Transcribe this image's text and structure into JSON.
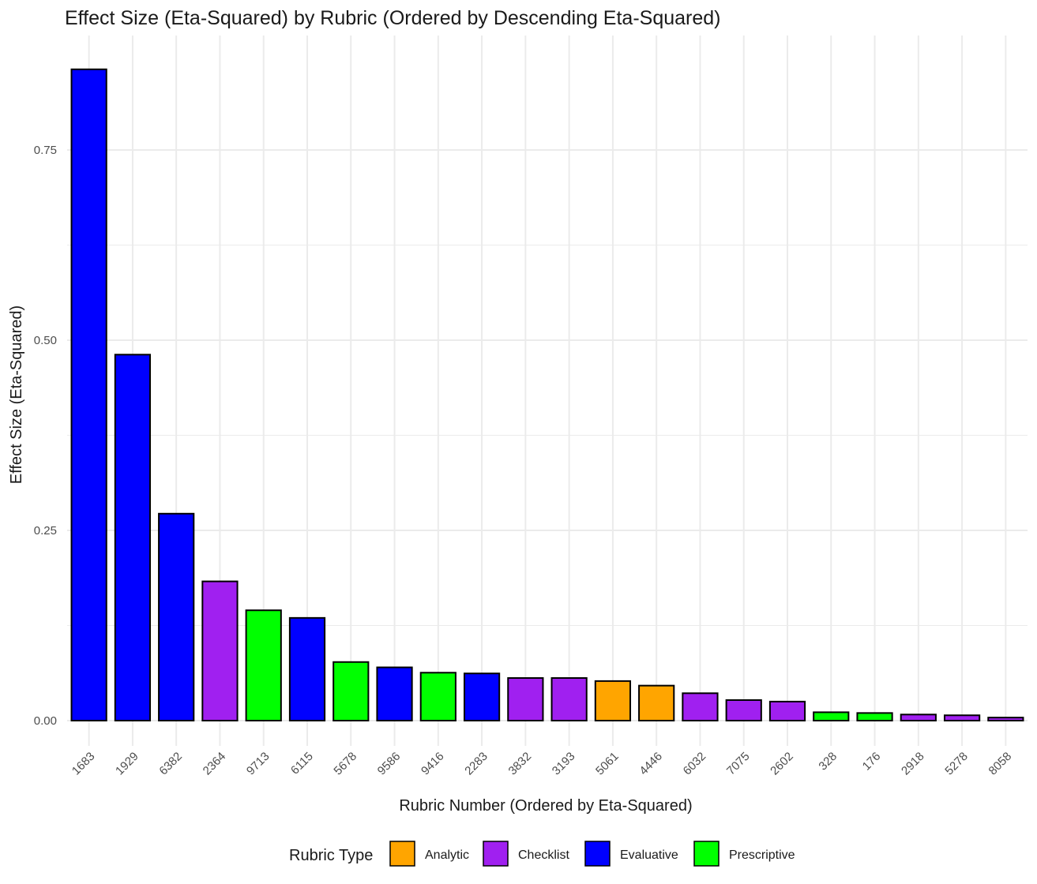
{
  "chart_data": {
    "type": "bar",
    "title": "Effect Size (Eta-Squared) by Rubric (Ordered by Descending Eta-Squared)",
    "xlabel": "Rubric Number (Ordered by Eta-Squared)",
    "ylabel": "Effect Size (Eta-Squared)",
    "ylim": [
      0,
      0.875
    ],
    "yticks": [
      0,
      0.25,
      0.5,
      0.75
    ],
    "ytick_labels": [
      "0.00",
      "0.25",
      "0.50",
      "0.75"
    ],
    "grid": true,
    "legend": {
      "title": "Rubric Type",
      "placement": "bottom",
      "entries": [
        {
          "label": "Analytic",
          "color": "#FFA500"
        },
        {
          "label": "Checklist",
          "color": "#A020F0"
        },
        {
          "label": "Evaluative",
          "color": "#0000FF"
        },
        {
          "label": "Prescriptive",
          "color": "#00FF00"
        }
      ]
    },
    "categories": [
      "1683",
      "1929",
      "6382",
      "2364",
      "9713",
      "6115",
      "5678",
      "9586",
      "9416",
      "2283",
      "3832",
      "3193",
      "5061",
      "4446",
      "6032",
      "7075",
      "2602",
      "328",
      "176",
      "2918",
      "5278",
      "8058"
    ],
    "values": [
      0.856,
      0.481,
      0.272,
      0.183,
      0.145,
      0.135,
      0.077,
      0.07,
      0.063,
      0.062,
      0.056,
      0.056,
      0.052,
      0.046,
      0.036,
      0.027,
      0.025,
      0.011,
      0.01,
      0.008,
      0.007,
      0.004
    ],
    "groups": [
      "Evaluative",
      "Evaluative",
      "Evaluative",
      "Checklist",
      "Prescriptive",
      "Evaluative",
      "Prescriptive",
      "Evaluative",
      "Prescriptive",
      "Evaluative",
      "Checklist",
      "Checklist",
      "Analytic",
      "Analytic",
      "Checklist",
      "Checklist",
      "Checklist",
      "Prescriptive",
      "Prescriptive",
      "Checklist",
      "Checklist",
      "Checklist"
    ]
  }
}
